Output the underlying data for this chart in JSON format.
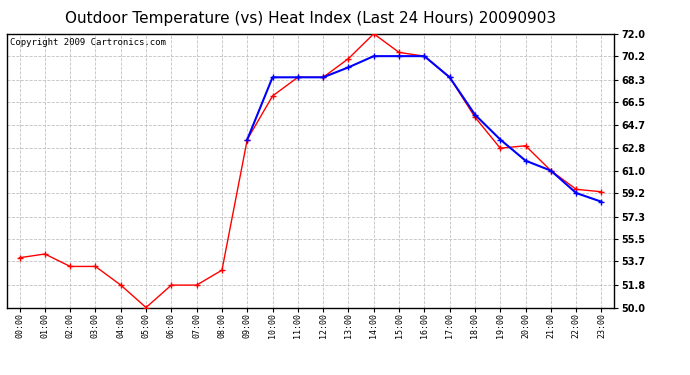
{
  "title": "Outdoor Temperature (vs) Heat Index (Last 24 Hours) 20090903",
  "copyright": "Copyright 2009 Cartronics.com",
  "x_labels": [
    "00:00",
    "01:00",
    "02:00",
    "03:00",
    "04:00",
    "05:00",
    "06:00",
    "07:00",
    "08:00",
    "09:00",
    "10:00",
    "11:00",
    "12:00",
    "13:00",
    "14:00",
    "15:00",
    "16:00",
    "17:00",
    "18:00",
    "19:00",
    "20:00",
    "21:00",
    "22:00",
    "23:00"
  ],
  "temp_red": [
    54.0,
    54.3,
    53.3,
    53.3,
    51.8,
    50.0,
    51.8,
    51.8,
    53.0,
    63.5,
    67.0,
    68.5,
    68.5,
    70.0,
    72.0,
    70.5,
    70.2,
    68.5,
    65.3,
    62.8,
    63.0,
    61.0,
    59.5,
    59.3
  ],
  "heat_blue": [
    null,
    null,
    null,
    null,
    null,
    null,
    null,
    null,
    null,
    63.5,
    68.5,
    68.5,
    68.5,
    69.3,
    70.2,
    70.2,
    70.2,
    68.5,
    65.5,
    63.5,
    61.8,
    61.0,
    59.2,
    58.5
  ],
  "ylim": [
    50.0,
    72.0
  ],
  "yticks": [
    50.0,
    51.8,
    53.7,
    55.5,
    57.3,
    59.2,
    61.0,
    62.8,
    64.7,
    66.5,
    68.3,
    70.2,
    72.0
  ],
  "red_color": "#ff0000",
  "blue_color": "#0000ff",
  "bg_color": "#ffffff",
  "plot_bg": "#ffffff",
  "grid_color": "#bbbbbb",
  "title_fontsize": 11,
  "copyright_fontsize": 6.5
}
